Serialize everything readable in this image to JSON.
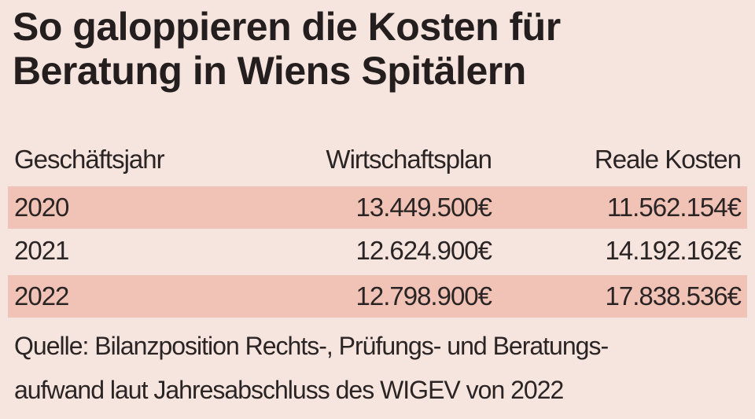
{
  "header": {
    "title_lines": [
      "So galoppieren die Kosten für",
      "Beratung in Wiens Spitälern"
    ]
  },
  "table": {
    "columns": [
      "Geschäftsjahr",
      "Wirtschaftsplan",
      "Reale Kosten"
    ],
    "rows": [
      [
        "2020",
        "13.449.500€",
        "11.562.154€"
      ],
      [
        "2021",
        "12.624.900€",
        "14.192.162€"
      ],
      [
        "2022",
        "12.798.900€",
        "17.838.536€"
      ]
    ]
  },
  "source": {
    "lines": [
      "Quelle: Bilanzposition Rechts-, Prüfungs- und Beratungs-",
      "aufwand laut Jahresabschluss des WIGEV von 2022"
    ]
  }
}
